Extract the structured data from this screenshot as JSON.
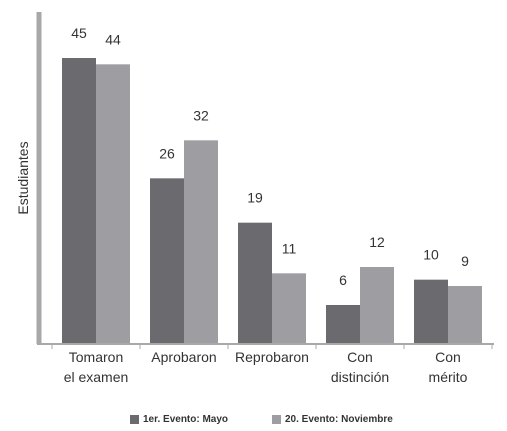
{
  "chart_data": {
    "type": "bar",
    "title": "",
    "xlabel": "",
    "ylabel": "Estudiantes",
    "ylim": [
      0,
      50
    ],
    "grid": false,
    "legend_position": "bottom",
    "categories": [
      [
        "Tomaron",
        "el examen"
      ],
      [
        "Aprobaron"
      ],
      [
        "Reprobaron"
      ],
      [
        "Con",
        "distinción"
      ],
      [
        "Con",
        "mérito"
      ]
    ],
    "series": [
      {
        "name": "1er. Evento: Mayo",
        "color": "#6b6b6f",
        "values": [
          45,
          26,
          19,
          6,
          10
        ]
      },
      {
        "name": "20. Evento: Noviembre",
        "color": "#9e9ea2",
        "values": [
          44,
          32,
          11,
          12,
          9
        ]
      }
    ]
  },
  "colors": {
    "axis": "#a8a8a8",
    "text": "#333333"
  }
}
